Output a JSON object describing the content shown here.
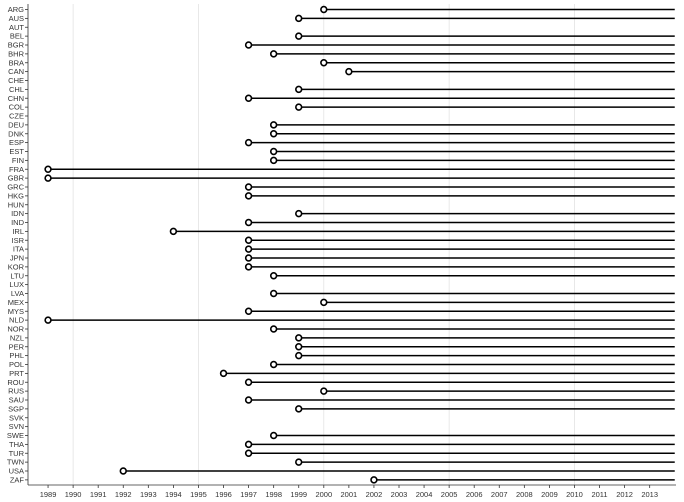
{
  "chart_data": {
    "type": "dumbbell",
    "title": "",
    "xlabel": "",
    "ylabel": "",
    "xlim": [
      1988.2,
      2014.05
    ],
    "x_ticks": [
      1989,
      1990,
      1991,
      1992,
      1993,
      1994,
      1995,
      1996,
      1997,
      1998,
      1999,
      2000,
      2001,
      2002,
      2003,
      2004,
      2005,
      2006,
      2007,
      2008,
      2009,
      2010,
      2011,
      2012,
      2013
    ],
    "x_grid_major": [
      1990,
      1995,
      2000,
      2005,
      2010
    ],
    "series_end": 2014,
    "categories": [
      "ARG",
      "AUS",
      "AUT",
      "BEL",
      "BGR",
      "BHR",
      "BRA",
      "CAN",
      "CHE",
      "CHL",
      "CHN",
      "COL",
      "CZE",
      "DEU",
      "DNK",
      "ESP",
      "EST",
      "FIN",
      "FRA",
      "GBR",
      "GRC",
      "HKG",
      "HUN",
      "IDN",
      "IND",
      "IRL",
      "ISR",
      "ITA",
      "JPN",
      "KOR",
      "LTU",
      "LUX",
      "LVA",
      "MEX",
      "MYS",
      "NLD",
      "NOR",
      "NZL",
      "PER",
      "PHL",
      "POL",
      "PRT",
      "ROU",
      "RUS",
      "SAU",
      "SGP",
      "SVK",
      "SVN",
      "SWE",
      "THA",
      "TUR",
      "TWN",
      "USA",
      "ZAF"
    ],
    "start_year": [
      2000,
      1999,
      null,
      1999,
      1997,
      1998,
      2000,
      2001,
      null,
      1999,
      1997,
      1999,
      null,
      1998,
      1998,
      1997,
      1998,
      1998,
      1989,
      1989,
      1997,
      1997,
      null,
      1999,
      1997,
      1994,
      1997,
      1997,
      1997,
      1997,
      1998,
      null,
      1998,
      2000,
      1997,
      1989,
      1998,
      1999,
      1999,
      1999,
      1998,
      1996,
      1997,
      2000,
      1997,
      1999,
      null,
      null,
      1998,
      1997,
      1997,
      1999,
      1992,
      2002
    ]
  }
}
